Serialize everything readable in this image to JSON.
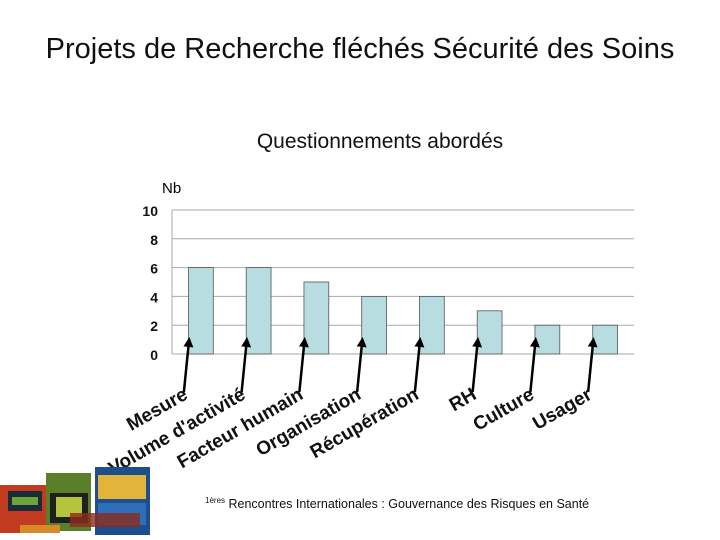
{
  "title": "Projets de Recherche fléchés Sécurité des Soins",
  "subtitle": "Questionnements abordés",
  "footer": {
    "superscript": "1ères",
    "text": " Rencontres Internationales : Gouvernance des Risques en Santé"
  },
  "colors": {
    "bar_fill": "#b7dde0",
    "bar_stroke": "#555555",
    "grid": "#aaaaaa",
    "arrow": "#000000"
  },
  "chart_data": {
    "type": "bar",
    "title": "Questionnements abordés",
    "ylabel": "Nb",
    "xlabel": "",
    "categories": [
      "Mesure",
      "Volume d'activité",
      "Facteur humain",
      "Organisation",
      "Récupération",
      "RH",
      "Culture",
      "Usager"
    ],
    "values": [
      6,
      6,
      5,
      4,
      4,
      3,
      2,
      2
    ],
    "ylim": [
      0,
      10
    ],
    "yticks": [
      0,
      2,
      4,
      6,
      8,
      10
    ],
    "grid": true,
    "legend": "none"
  }
}
